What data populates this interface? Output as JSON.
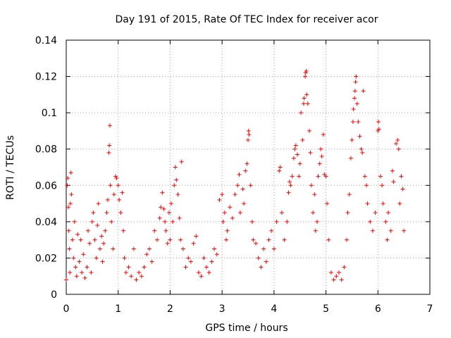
{
  "chart_data": {
    "type": "scatter",
    "title": "Day 191 of 2015, Rate Of TEC Index for receiver acor",
    "xlabel": "GPS time / hours",
    "ylabel": "ROTI / TECUs",
    "xlim": [
      0,
      7
    ],
    "ylim": [
      0,
      0.14
    ],
    "xticks": [
      "0",
      "1",
      "2",
      "3",
      "4",
      "5",
      "6",
      "7"
    ],
    "yticks": [
      "0",
      "0.02",
      "0.04",
      "0.06",
      "0.08",
      "0.1",
      "0.12",
      "0.14"
    ],
    "grid": true,
    "marker": "+",
    "color": "#ff0000",
    "series": [
      {
        "points": [
          [
            0.0,
            0.008
          ],
          [
            0.02,
            0.06
          ],
          [
            0.03,
            0.064
          ],
          [
            0.04,
            0.048
          ],
          [
            0.05,
            0.035
          ],
          [
            0.06,
            0.025
          ],
          [
            0.07,
            0.012
          ],
          [
            0.08,
            0.05
          ],
          [
            0.09,
            0.067
          ],
          [
            0.1,
            0.055
          ],
          [
            0.12,
            0.03
          ],
          [
            0.14,
            0.02
          ],
          [
            0.16,
            0.04
          ],
          [
            0.18,
            0.015
          ],
          [
            0.2,
            0.01
          ],
          [
            0.22,
            0.033
          ],
          [
            0.25,
            0.018
          ],
          [
            0.28,
            0.03
          ],
          [
            0.3,
            0.012
          ],
          [
            0.33,
            0.022
          ],
          [
            0.36,
            0.009
          ],
          [
            0.4,
            0.015
          ],
          [
            0.42,
            0.035
          ],
          [
            0.45,
            0.028
          ],
          [
            0.48,
            0.012
          ],
          [
            0.5,
            0.04
          ],
          [
            0.52,
            0.045
          ],
          [
            0.55,
            0.03
          ],
          [
            0.58,
            0.02
          ],
          [
            0.6,
            0.038
          ],
          [
            0.62,
            0.05
          ],
          [
            0.65,
            0.025
          ],
          [
            0.68,
            0.032
          ],
          [
            0.7,
            0.018
          ],
          [
            0.72,
            0.028
          ],
          [
            0.75,
            0.035
          ],
          [
            0.78,
            0.045
          ],
          [
            0.8,
            0.052
          ],
          [
            0.82,
            0.078
          ],
          [
            0.83,
            0.082
          ],
          [
            0.84,
            0.093
          ],
          [
            0.85,
            0.06
          ],
          [
            0.87,
            0.04
          ],
          [
            0.9,
            0.025
          ],
          [
            0.92,
            0.055
          ],
          [
            0.95,
            0.065
          ],
          [
            0.97,
            0.064
          ],
          [
            1.0,
            0.06
          ],
          [
            1.02,
            0.052
          ],
          [
            1.05,
            0.045
          ],
          [
            1.08,
            0.056
          ],
          [
            1.1,
            0.035
          ],
          [
            1.12,
            0.02
          ],
          [
            1.15,
            0.012
          ],
          [
            1.2,
            0.015
          ],
          [
            1.25,
            0.01
          ],
          [
            1.3,
            0.025
          ],
          [
            1.35,
            0.008
          ],
          [
            1.4,
            0.012
          ],
          [
            1.45,
            0.01
          ],
          [
            1.5,
            0.015
          ],
          [
            1.55,
            0.022
          ],
          [
            1.6,
            0.025
          ],
          [
            1.65,
            0.018
          ],
          [
            1.7,
            0.035
          ],
          [
            1.75,
            0.03
          ],
          [
            1.8,
            0.042
          ],
          [
            1.82,
            0.048
          ],
          [
            1.85,
            0.056
          ],
          [
            1.88,
            0.047
          ],
          [
            1.9,
            0.04
          ],
          [
            1.92,
            0.035
          ],
          [
            1.95,
            0.028
          ],
          [
            1.98,
            0.045
          ],
          [
            2.0,
            0.03
          ],
          [
            2.02,
            0.05
          ],
          [
            2.05,
            0.04
          ],
          [
            2.08,
            0.06
          ],
          [
            2.1,
            0.07
          ],
          [
            2.12,
            0.063
          ],
          [
            2.15,
            0.055
          ],
          [
            2.18,
            0.042
          ],
          [
            2.2,
            0.03
          ],
          [
            2.22,
            0.073
          ],
          [
            2.25,
            0.025
          ],
          [
            2.3,
            0.015
          ],
          [
            2.35,
            0.02
          ],
          [
            2.4,
            0.018
          ],
          [
            2.45,
            0.028
          ],
          [
            2.5,
            0.032
          ],
          [
            2.55,
            0.012
          ],
          [
            2.6,
            0.01
          ],
          [
            2.65,
            0.02
          ],
          [
            2.7,
            0.015
          ],
          [
            2.75,
            0.012
          ],
          [
            2.8,
            0.018
          ],
          [
            2.85,
            0.025
          ],
          [
            2.9,
            0.022
          ],
          [
            2.95,
            0.052
          ],
          [
            3.0,
            0.055
          ],
          [
            3.02,
            0.04
          ],
          [
            3.05,
            0.045
          ],
          [
            3.08,
            0.03
          ],
          [
            3.1,
            0.035
          ],
          [
            3.15,
            0.048
          ],
          [
            3.2,
            0.042
          ],
          [
            3.25,
            0.055
          ],
          [
            3.3,
            0.06
          ],
          [
            3.33,
            0.066
          ],
          [
            3.35,
            0.045
          ],
          [
            3.4,
            0.058
          ],
          [
            3.42,
            0.05
          ],
          [
            3.45,
            0.068
          ],
          [
            3.48,
            0.072
          ],
          [
            3.5,
            0.085
          ],
          [
            3.51,
            0.09
          ],
          [
            3.52,
            0.088
          ],
          [
            3.55,
            0.06
          ],
          [
            3.58,
            0.04
          ],
          [
            3.6,
            0.03
          ],
          [
            3.65,
            0.028
          ],
          [
            3.7,
            0.02
          ],
          [
            3.75,
            0.015
          ],
          [
            3.8,
            0.025
          ],
          [
            3.85,
            0.018
          ],
          [
            3.9,
            0.03
          ],
          [
            3.95,
            0.035
          ],
          [
            4.0,
            0.025
          ],
          [
            4.05,
            0.04
          ],
          [
            4.1,
            0.068
          ],
          [
            4.12,
            0.07
          ],
          [
            4.15,
            0.045
          ],
          [
            4.2,
            0.03
          ],
          [
            4.25,
            0.04
          ],
          [
            4.28,
            0.056
          ],
          [
            4.3,
            0.062
          ],
          [
            4.32,
            0.06
          ],
          [
            4.35,
            0.065
          ],
          [
            4.38,
            0.075
          ],
          [
            4.4,
            0.08
          ],
          [
            4.42,
            0.082
          ],
          [
            4.45,
            0.077
          ],
          [
            4.48,
            0.065
          ],
          [
            4.5,
            0.072
          ],
          [
            4.52,
            0.1
          ],
          [
            4.55,
            0.085
          ],
          [
            4.57,
            0.105
          ],
          [
            4.58,
            0.108
          ],
          [
            4.6,
            0.12
          ],
          [
            4.61,
            0.122
          ],
          [
            4.62,
            0.123
          ],
          [
            4.63,
            0.11
          ],
          [
            4.65,
            0.105
          ],
          [
            4.68,
            0.09
          ],
          [
            4.7,
            0.078
          ],
          [
            4.72,
            0.06
          ],
          [
            4.75,
            0.045
          ],
          [
            4.78,
            0.055
          ],
          [
            4.8,
            0.035
          ],
          [
            4.83,
            0.04
          ],
          [
            4.85,
            0.065
          ],
          [
            4.88,
            0.072
          ],
          [
            4.9,
            0.08
          ],
          [
            4.92,
            0.076
          ],
          [
            4.95,
            0.088
          ],
          [
            4.97,
            0.066
          ],
          [
            5.0,
            0.065
          ],
          [
            5.02,
            0.05
          ],
          [
            5.05,
            0.03
          ],
          [
            5.1,
            0.012
          ],
          [
            5.15,
            0.008
          ],
          [
            5.2,
            0.01
          ],
          [
            5.25,
            0.012
          ],
          [
            5.3,
            0.008
          ],
          [
            5.35,
            0.015
          ],
          [
            5.4,
            0.03
          ],
          [
            5.42,
            0.045
          ],
          [
            5.45,
            0.055
          ],
          [
            5.48,
            0.075
          ],
          [
            5.5,
            0.085
          ],
          [
            5.52,
            0.095
          ],
          [
            5.53,
            0.102
          ],
          [
            5.55,
            0.108
          ],
          [
            5.56,
            0.112
          ],
          [
            5.57,
            0.117
          ],
          [
            5.58,
            0.12
          ],
          [
            5.6,
            0.105
          ],
          [
            5.62,
            0.095
          ],
          [
            5.65,
            0.087
          ],
          [
            5.68,
            0.08
          ],
          [
            5.7,
            0.078
          ],
          [
            5.72,
            0.112
          ],
          [
            5.75,
            0.065
          ],
          [
            5.78,
            0.06
          ],
          [
            5.8,
            0.05
          ],
          [
            5.85,
            0.04
          ],
          [
            5.9,
            0.035
          ],
          [
            5.95,
            0.045
          ],
          [
            6.0,
            0.09
          ],
          [
            6.01,
            0.095
          ],
          [
            6.02,
            0.091
          ],
          [
            6.05,
            0.065
          ],
          [
            6.08,
            0.06
          ],
          [
            6.1,
            0.05
          ],
          [
            6.15,
            0.04
          ],
          [
            6.18,
            0.03
          ],
          [
            6.2,
            0.045
          ],
          [
            6.25,
            0.035
          ],
          [
            6.28,
            0.068
          ],
          [
            6.3,
            0.062
          ],
          [
            6.35,
            0.083
          ],
          [
            6.38,
            0.085
          ],
          [
            6.4,
            0.08
          ],
          [
            6.42,
            0.05
          ],
          [
            6.45,
            0.065
          ],
          [
            6.48,
            0.058
          ],
          [
            6.5,
            0.035
          ]
        ]
      }
    ]
  }
}
